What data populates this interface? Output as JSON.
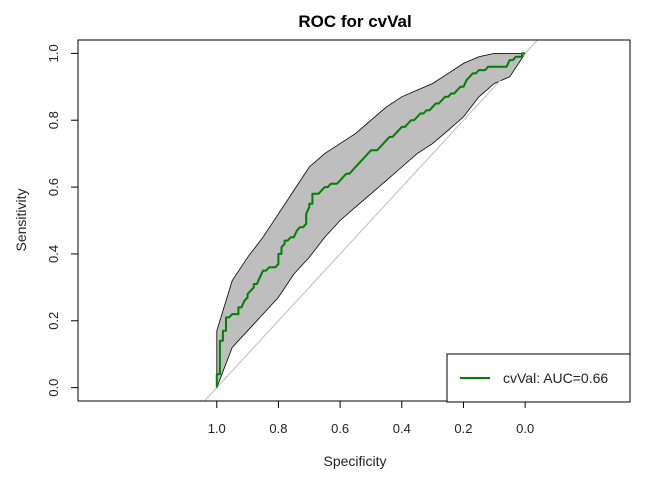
{
  "chart_data": {
    "type": "line",
    "title": "ROC for cvVal",
    "xlabel": "Specificity",
    "ylabel": "Sensitivity",
    "x_reversed": true,
    "xlim": [
      1.45,
      -0.34
    ],
    "ylim": [
      -0.04,
      1.04
    ],
    "x_ticks": [
      1.0,
      0.8,
      0.6,
      0.4,
      0.2,
      0.0
    ],
    "x_tick_labels": [
      "1.0",
      "0.8",
      "0.6",
      "0.4",
      "0.2",
      "0.0"
    ],
    "y_ticks": [
      0.0,
      0.2,
      0.4,
      0.6,
      0.8,
      1.0
    ],
    "y_tick_labels": [
      "0.0",
      "0.2",
      "0.4",
      "0.6",
      "0.8",
      "1.0"
    ],
    "legend_position": "bottom-right",
    "grid": false,
    "diagonal_color": "#bdbdbd",
    "band_color": "#bebebe",
    "series": [
      {
        "name": "cvVal: AUC=0.66",
        "color": "#008000",
        "specificity": [
          1.0,
          1.0,
          0.99,
          0.99,
          0.98,
          0.98,
          0.97,
          0.97,
          0.96,
          0.95,
          0.94,
          0.93,
          0.93,
          0.92,
          0.91,
          0.9,
          0.9,
          0.89,
          0.88,
          0.88,
          0.87,
          0.86,
          0.85,
          0.84,
          0.83,
          0.82,
          0.81,
          0.8,
          0.8,
          0.79,
          0.79,
          0.78,
          0.78,
          0.77,
          0.76,
          0.75,
          0.74,
          0.73,
          0.72,
          0.71,
          0.71,
          0.7,
          0.7,
          0.69,
          0.69,
          0.68,
          0.67,
          0.66,
          0.65,
          0.64,
          0.63,
          0.62,
          0.61,
          0.6,
          0.59,
          0.58,
          0.57,
          0.56,
          0.55,
          0.54,
          0.53,
          0.52,
          0.51,
          0.5,
          0.49,
          0.48,
          0.47,
          0.46,
          0.45,
          0.44,
          0.43,
          0.42,
          0.41,
          0.4,
          0.39,
          0.38,
          0.37,
          0.36,
          0.35,
          0.34,
          0.33,
          0.32,
          0.31,
          0.3,
          0.29,
          0.28,
          0.27,
          0.26,
          0.25,
          0.24,
          0.23,
          0.22,
          0.21,
          0.2,
          0.19,
          0.18,
          0.17,
          0.16,
          0.15,
          0.14,
          0.13,
          0.12,
          0.11,
          0.1,
          0.09,
          0.08,
          0.07,
          0.06,
          0.05,
          0.04,
          0.03,
          0.02,
          0.01,
          0.01,
          0.0,
          0.0
        ],
        "sensitivity": [
          0.0,
          0.04,
          0.04,
          0.14,
          0.14,
          0.17,
          0.17,
          0.21,
          0.21,
          0.22,
          0.22,
          0.22,
          0.24,
          0.24,
          0.26,
          0.27,
          0.28,
          0.29,
          0.3,
          0.31,
          0.31,
          0.33,
          0.35,
          0.35,
          0.36,
          0.36,
          0.36,
          0.37,
          0.4,
          0.4,
          0.42,
          0.43,
          0.44,
          0.44,
          0.45,
          0.45,
          0.47,
          0.48,
          0.48,
          0.49,
          0.52,
          0.54,
          0.55,
          0.55,
          0.58,
          0.58,
          0.58,
          0.59,
          0.6,
          0.6,
          0.61,
          0.61,
          0.61,
          0.62,
          0.63,
          0.64,
          0.64,
          0.65,
          0.66,
          0.67,
          0.68,
          0.69,
          0.7,
          0.71,
          0.71,
          0.71,
          0.72,
          0.73,
          0.74,
          0.75,
          0.75,
          0.76,
          0.77,
          0.78,
          0.78,
          0.79,
          0.8,
          0.8,
          0.81,
          0.82,
          0.82,
          0.83,
          0.83,
          0.84,
          0.85,
          0.85,
          0.86,
          0.87,
          0.87,
          0.88,
          0.88,
          0.89,
          0.9,
          0.9,
          0.92,
          0.93,
          0.94,
          0.94,
          0.95,
          0.95,
          0.95,
          0.96,
          0.96,
          0.96,
          0.96,
          0.96,
          0.96,
          0.96,
          0.98,
          0.98,
          0.99,
          0.99,
          0.99,
          1.0,
          1.0,
          1.0
        ]
      }
    ],
    "confidence_band": {
      "specificity": [
        1.0,
        0.95,
        0.9,
        0.85,
        0.8,
        0.75,
        0.7,
        0.65,
        0.6,
        0.55,
        0.5,
        0.45,
        0.4,
        0.35,
        0.3,
        0.25,
        0.2,
        0.15,
        0.1,
        0.05,
        0.0
      ],
      "upper": [
        0.17,
        0.32,
        0.39,
        0.45,
        0.52,
        0.59,
        0.66,
        0.7,
        0.73,
        0.76,
        0.8,
        0.84,
        0.87,
        0.89,
        0.91,
        0.94,
        0.97,
        0.99,
        1.0,
        1.0,
        1.0
      ],
      "lower": [
        0.0,
        0.12,
        0.17,
        0.22,
        0.27,
        0.34,
        0.39,
        0.45,
        0.5,
        0.54,
        0.58,
        0.62,
        0.66,
        0.7,
        0.73,
        0.77,
        0.81,
        0.87,
        0.91,
        0.93,
        1.0
      ]
    }
  }
}
